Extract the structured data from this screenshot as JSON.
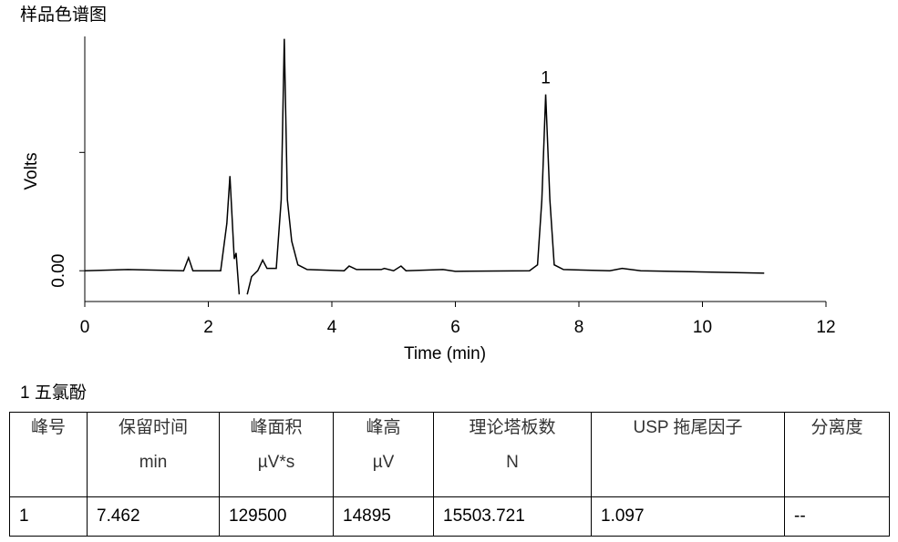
{
  "chart_data": {
    "type": "line",
    "title": "样品色谱图",
    "x_label": "Time (min)",
    "y_label": "Volts",
    "x": [
      0,
      0.7,
      1.6,
      1.68,
      1.75,
      2.2,
      2.3,
      2.35,
      2.42,
      2.45,
      2.5,
      2.56,
      2.63,
      2.7,
      2.8,
      2.88,
      2.95,
      3.1,
      3.18,
      3.23,
      3.28,
      3.35,
      3.45,
      3.6,
      4.2,
      4.28,
      4.4,
      4.8,
      4.85,
      5.0,
      5.12,
      5.2,
      5.8,
      6.0,
      7.2,
      7.33,
      7.4,
      7.462,
      7.53,
      7.6,
      7.75,
      8.5,
      8.7,
      9.0,
      11.0
    ],
    "y": [
      0,
      0.0001,
      0,
      0.0011,
      0,
      0,
      0.004,
      0.008,
      0.001,
      0.0015,
      -0.002,
      null,
      -0.002,
      -0.0005,
      0,
      0.0009,
      0.0002,
      0.0002,
      0.006,
      0.0196,
      0.006,
      0.0025,
      0.0005,
      0.0001,
      0,
      0.0004,
      0.0001,
      0.0001,
      0.0002,
      0,
      0.0004,
      0,
      0.0001,
      -5e-05,
      0,
      0.0005,
      0.006,
      0.0149,
      0.006,
      0.0005,
      0.0001,
      0,
      0.0002,
      0,
      -0.0002
    ],
    "color": "#000000",
    "xlim": [
      0,
      12
    ],
    "xticks": [
      0,
      2,
      4,
      6,
      8,
      10,
      12
    ],
    "ylim": [
      -0.0026,
      0.0198
    ],
    "yticks": [
      {
        "value": 0,
        "label": "0.00"
      },
      {
        "value": 0.01,
        "label": null
      }
    ],
    "peak_label": "1"
  },
  "peak_caption": "1  五氯酚",
  "table": {
    "headers": [
      [
        "峰号",
        "保留时间",
        "峰面积",
        "峰高",
        "理论塔板数",
        "USP 拖尾因子",
        "分离度"
      ],
      [
        null,
        "min",
        "µV*s",
        "µV",
        "N",
        null,
        null
      ]
    ],
    "rows": [
      [
        "1",
        "7.462",
        "129500",
        "14895",
        "15503.721",
        "1.097",
        "--"
      ]
    ]
  }
}
